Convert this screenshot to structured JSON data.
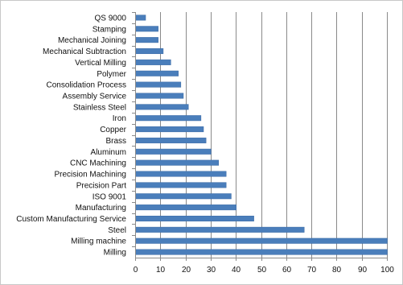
{
  "chart_data": {
    "type": "bar",
    "orientation": "horizontal",
    "categories": [
      "QS 9000",
      "Stamping",
      "Mechanical Joining",
      "Mechanical Subtraction",
      "Vertical Milling",
      "Polymer",
      "Consolidation Process",
      "Assembly Service",
      "Stainless Steel",
      "Iron",
      "Copper",
      "Brass",
      "Aluminum",
      "CNC Machining",
      "Precision Machining",
      "Precision Part",
      "ISO 9001",
      "Manufacturing",
      "Custom Manufacturing Service",
      "Steel",
      "Milling machine",
      "Milling"
    ],
    "values": [
      4,
      9,
      9,
      11,
      14,
      17,
      18,
      19,
      21,
      26,
      27,
      28,
      30,
      33,
      36,
      36,
      38,
      40,
      47,
      67,
      100,
      100
    ],
    "xlim": [
      0,
      100
    ],
    "xticks": [
      0,
      10,
      20,
      30,
      40,
      50,
      60,
      70,
      80,
      90,
      100
    ],
    "grid": true,
    "colors": {
      "bar": "#4a7ebb",
      "bar_edge": "#3a6aa5",
      "border": "#c8c8c8",
      "grid": "#8a8a8a"
    }
  }
}
